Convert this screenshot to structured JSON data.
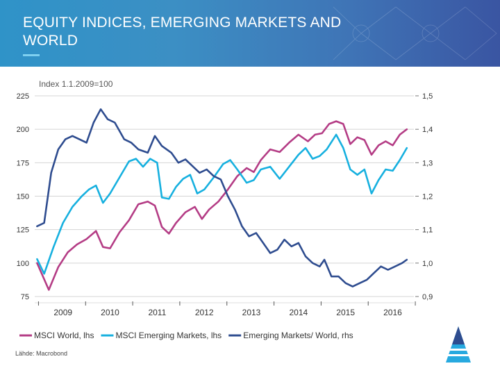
{
  "slide": {
    "title_line1": "EQUITY INDICES, EMERGING MARKETS AND",
    "title_line2": "WORLD",
    "source": "Lähde: Macrobond"
  },
  "chart_data": {
    "type": "line",
    "title": "",
    "ylabel": "Index 1.1.2009=100",
    "xlabel": "",
    "x_tick_labels": [
      "2009",
      "2010",
      "2011",
      "2012",
      "2013",
      "2014",
      "2015",
      "2016"
    ],
    "y_left": {
      "ylim": [
        75,
        225
      ],
      "ticks": [
        225,
        200,
        175,
        150,
        125,
        100,
        75
      ]
    },
    "y_right": {
      "ylim": [
        0.9,
        1.5
      ],
      "ticks": [
        "1,5",
        "1,4",
        "1,3",
        "1,2",
        "1,1",
        "1,0",
        "0,9"
      ]
    },
    "grid": true,
    "legend_position": "bottom",
    "series": [
      {
        "name": "MSCI World, lhs",
        "axis": "left",
        "color": "#b43c85",
        "points": [
          [
            2008.95,
            100
          ],
          [
            2009.2,
            80
          ],
          [
            2009.4,
            97
          ],
          [
            2009.6,
            108
          ],
          [
            2009.8,
            114
          ],
          [
            2010.0,
            118
          ],
          [
            2010.2,
            124
          ],
          [
            2010.35,
            112
          ],
          [
            2010.5,
            111
          ],
          [
            2010.7,
            123
          ],
          [
            2010.9,
            132
          ],
          [
            2011.1,
            144
          ],
          [
            2011.3,
            146
          ],
          [
            2011.45,
            143
          ],
          [
            2011.6,
            127
          ],
          [
            2011.75,
            122
          ],
          [
            2011.9,
            130
          ],
          [
            2012.1,
            138
          ],
          [
            2012.3,
            142
          ],
          [
            2012.45,
            133
          ],
          [
            2012.6,
            140
          ],
          [
            2012.8,
            146
          ],
          [
            2013.0,
            155
          ],
          [
            2013.2,
            165
          ],
          [
            2013.4,
            171
          ],
          [
            2013.55,
            168
          ],
          [
            2013.7,
            177
          ],
          [
            2013.9,
            185
          ],
          [
            2014.1,
            183
          ],
          [
            2014.3,
            190
          ],
          [
            2014.5,
            196
          ],
          [
            2014.7,
            191
          ],
          [
            2014.85,
            196
          ],
          [
            2015.0,
            197
          ],
          [
            2015.15,
            204
          ],
          [
            2015.3,
            206
          ],
          [
            2015.45,
            204
          ],
          [
            2015.6,
            189
          ],
          [
            2015.75,
            194
          ],
          [
            2015.9,
            192
          ],
          [
            2016.05,
            181
          ],
          [
            2016.2,
            188
          ],
          [
            2016.35,
            191
          ],
          [
            2016.5,
            188
          ],
          [
            2016.65,
            196
          ],
          [
            2016.8,
            200
          ]
        ]
      },
      {
        "name": "MSCI Emerging Markets, lhs",
        "axis": "left",
        "color": "#16b0df",
        "points": [
          [
            2008.95,
            103
          ],
          [
            2009.1,
            92
          ],
          [
            2009.3,
            112
          ],
          [
            2009.5,
            130
          ],
          [
            2009.7,
            142
          ],
          [
            2009.9,
            150
          ],
          [
            2010.05,
            155
          ],
          [
            2010.2,
            158
          ],
          [
            2010.35,
            145
          ],
          [
            2010.5,
            152
          ],
          [
            2010.7,
            164
          ],
          [
            2010.9,
            176
          ],
          [
            2011.05,
            178
          ],
          [
            2011.2,
            172
          ],
          [
            2011.35,
            178
          ],
          [
            2011.5,
            175
          ],
          [
            2011.6,
            149
          ],
          [
            2011.75,
            148
          ],
          [
            2011.9,
            157
          ],
          [
            2012.05,
            163
          ],
          [
            2012.2,
            166
          ],
          [
            2012.35,
            152
          ],
          [
            2012.5,
            155
          ],
          [
            2012.7,
            164
          ],
          [
            2012.9,
            174
          ],
          [
            2013.05,
            177
          ],
          [
            2013.2,
            170
          ],
          [
            2013.4,
            160
          ],
          [
            2013.55,
            162
          ],
          [
            2013.7,
            170
          ],
          [
            2013.9,
            172
          ],
          [
            2014.1,
            163
          ],
          [
            2014.3,
            172
          ],
          [
            2014.5,
            181
          ],
          [
            2014.65,
            186
          ],
          [
            2014.8,
            178
          ],
          [
            2014.95,
            180
          ],
          [
            2015.1,
            185
          ],
          [
            2015.3,
            196
          ],
          [
            2015.45,
            186
          ],
          [
            2015.6,
            170
          ],
          [
            2015.75,
            166
          ],
          [
            2015.9,
            170
          ],
          [
            2016.05,
            152
          ],
          [
            2016.2,
            162
          ],
          [
            2016.35,
            170
          ],
          [
            2016.5,
            169
          ],
          [
            2016.65,
            177
          ],
          [
            2016.8,
            186
          ]
        ]
      },
      {
        "name": "Emerging Markets/ World, rhs",
        "axis": "right",
        "color": "#2e4c8f",
        "points": [
          [
            2008.95,
            1.11
          ],
          [
            2009.1,
            1.12
          ],
          [
            2009.25,
            1.27
          ],
          [
            2009.4,
            1.34
          ],
          [
            2009.55,
            1.37
          ],
          [
            2009.7,
            1.38
          ],
          [
            2009.85,
            1.37
          ],
          [
            2010.0,
            1.36
          ],
          [
            2010.15,
            1.42
          ],
          [
            2010.3,
            1.46
          ],
          [
            2010.45,
            1.43
          ],
          [
            2010.6,
            1.42
          ],
          [
            2010.8,
            1.37
          ],
          [
            2010.95,
            1.36
          ],
          [
            2011.1,
            1.34
          ],
          [
            2011.3,
            1.33
          ],
          [
            2011.45,
            1.38
          ],
          [
            2011.6,
            1.35
          ],
          [
            2011.8,
            1.33
          ],
          [
            2011.95,
            1.3
          ],
          [
            2012.1,
            1.31
          ],
          [
            2012.25,
            1.29
          ],
          [
            2012.4,
            1.27
          ],
          [
            2012.55,
            1.28
          ],
          [
            2012.7,
            1.26
          ],
          [
            2012.85,
            1.25
          ],
          [
            2013.0,
            1.2
          ],
          [
            2013.15,
            1.16
          ],
          [
            2013.3,
            1.11
          ],
          [
            2013.45,
            1.08
          ],
          [
            2013.6,
            1.09
          ],
          [
            2013.75,
            1.06
          ],
          [
            2013.9,
            1.03
          ],
          [
            2014.05,
            1.04
          ],
          [
            2014.2,
            1.07
          ],
          [
            2014.35,
            1.05
          ],
          [
            2014.5,
            1.06
          ],
          [
            2014.65,
            1.02
          ],
          [
            2014.8,
            1.0
          ],
          [
            2014.95,
            0.99
          ],
          [
            2015.05,
            1.01
          ],
          [
            2015.2,
            0.96
          ],
          [
            2015.35,
            0.96
          ],
          [
            2015.5,
            0.94
          ],
          [
            2015.65,
            0.93
          ],
          [
            2015.8,
            0.94
          ],
          [
            2015.95,
            0.95
          ],
          [
            2016.1,
            0.97
          ],
          [
            2016.25,
            0.99
          ],
          [
            2016.4,
            0.98
          ],
          [
            2016.55,
            0.99
          ],
          [
            2016.7,
            1.0
          ],
          [
            2016.8,
            1.01
          ]
        ]
      }
    ]
  },
  "colors": {
    "header_start": "#2f93c8",
    "header_end": "#3a55a2",
    "grid": "#d4d4d4"
  }
}
